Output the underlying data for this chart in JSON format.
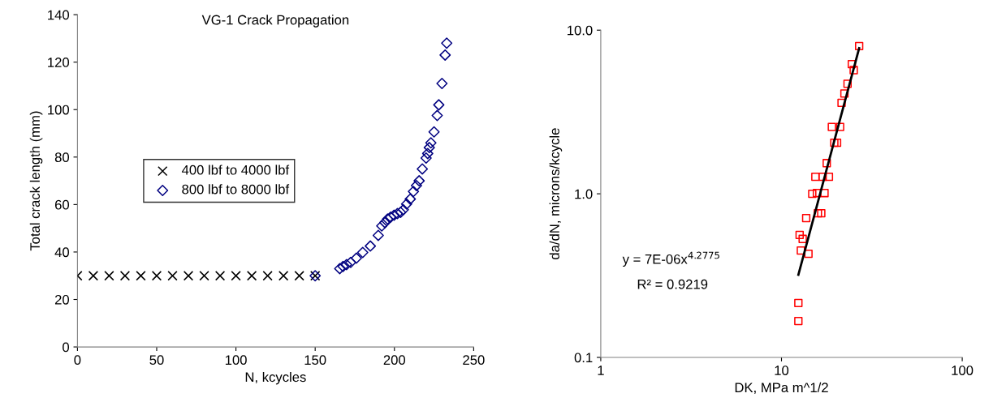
{
  "chart_data": [
    {
      "type": "scatter",
      "title": "VG-1 Crack Propagation",
      "xlabel": "N, kcycles",
      "ylabel": "Total crack length (mm)",
      "xlim": [
        0,
        250
      ],
      "ylim": [
        0,
        140
      ],
      "xticks": [
        0,
        50,
        100,
        150,
        200,
        250
      ],
      "yticks": [
        0,
        20,
        40,
        60,
        80,
        100,
        120,
        140
      ],
      "grid": false,
      "legend": "center left",
      "series": [
        {
          "name": "400 lbf to 4000 lbf",
          "color": "#000000",
          "marker": "cross",
          "x": [
            0,
            10,
            20,
            30,
            40,
            50,
            60,
            70,
            80,
            90,
            100,
            110,
            120,
            130,
            140,
            150
          ],
          "values": [
            30,
            30,
            30,
            30,
            30,
            30,
            30,
            30,
            30,
            30,
            30,
            30,
            30,
            30,
            30,
            30
          ]
        },
        {
          "name": "800 lbf to 8000 lbf",
          "color": "#000080",
          "marker": "diamond",
          "x": [
            150,
            165.5,
            167.6,
            169.8,
            172.4,
            176,
            180,
            184.8,
            189.8,
            192,
            194,
            195.7,
            197.6,
            199.8,
            201.9,
            203.9,
            205.6,
            207.7,
            210,
            212,
            213.9,
            215.6,
            217.6,
            220,
            221,
            222,
            223,
            225,
            227,
            228,
            230,
            232,
            233
          ],
          "values": [
            30,
            33,
            33.9,
            34.7,
            35.6,
            37.4,
            39.8,
            42.5,
            47,
            51,
            52.4,
            53.9,
            54.7,
            55.5,
            56.2,
            56.7,
            57.8,
            60.2,
            62.3,
            65.5,
            68,
            70,
            75,
            79.6,
            81.5,
            84,
            86,
            90.6,
            97.5,
            102,
            111,
            123,
            128
          ]
        }
      ]
    },
    {
      "type": "scatter",
      "xlabel": "DK, MPa m^1/2",
      "ylabel": "da/dN, microns/kcycle",
      "log": "xy",
      "xlim": [
        1,
        100
      ],
      "ylim": [
        0.1,
        10
      ],
      "xticks": [
        1,
        10,
        100
      ],
      "yticks": [
        {
          "value": 0.1,
          "label": "0.1"
        },
        {
          "value": 1,
          "label": "1.0"
        },
        {
          "value": 10,
          "label": "10.0"
        }
      ],
      "grid": false,
      "annotations": [
        "y = 7E-06x$^{4.2775}$",
        "R² = 0.9219"
      ],
      "series": [
        {
          "color": "#ff0000",
          "marker": "square",
          "x": [
            26.9,
            24.5,
            25.1,
            23.2,
            22.3,
            21.5,
            19.0,
            21.1,
            19.6,
            20.3,
            17.8,
            15.4,
            16.9,
            18.3,
            14.8,
            15.7,
            17.3,
            15.9,
            16.6,
            13.7,
            12.6,
            13.1,
            12.8,
            14.1,
            12.4,
            12.4
          ],
          "values": [
            8.0,
            6.2,
            5.7,
            4.7,
            4.1,
            3.6,
            2.56,
            2.56,
            2.05,
            2.05,
            1.54,
            1.27,
            1.27,
            1.27,
            1.0,
            1.01,
            1.01,
            0.76,
            0.76,
            0.71,
            0.56,
            0.53,
            0.45,
            0.43,
            0.215,
            0.167
          ]
        },
        {
          "type": "line",
          "color": "#000000",
          "marker": "none",
          "x": [
            12.4,
            26.9
          ],
          "values": [
            0.32,
            7.75
          ]
        }
      ]
    }
  ]
}
